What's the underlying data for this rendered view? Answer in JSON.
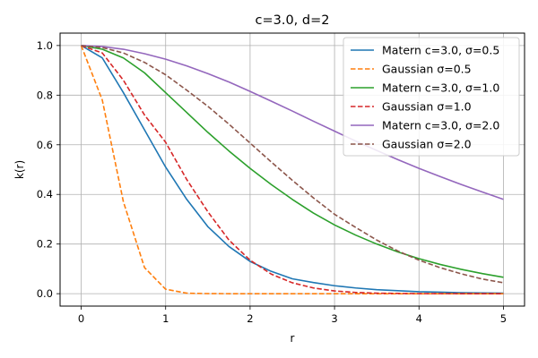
{
  "chart_data": {
    "type": "line",
    "title": "c=3.0, d=2",
    "xlabel": "r",
    "ylabel": "k(r)",
    "xlim": [
      -0.25,
      5.25
    ],
    "ylim": [
      -0.05,
      1.05
    ],
    "xticks": [
      0,
      1,
      2,
      3,
      4,
      5
    ],
    "xtick_labels": [
      "0",
      "1",
      "2",
      "3",
      "4",
      "5"
    ],
    "yticks": [
      0.0,
      0.2,
      0.4,
      0.6,
      0.8,
      1.0
    ],
    "ytick_labels": [
      "0.0",
      "0.2",
      "0.4",
      "0.6",
      "0.8",
      "1.0"
    ],
    "grid": true,
    "legend_position": "top-right",
    "x": [
      0,
      0.25,
      0.5,
      0.75,
      1,
      1.25,
      1.5,
      1.75,
      2,
      2.25,
      2.5,
      2.75,
      3,
      3.25,
      3.5,
      3.75,
      4,
      4.25,
      4.5,
      4.75,
      5
    ],
    "series": [
      {
        "name": "Matern c=3.0, σ=0.5",
        "color": "#1f77b4",
        "dash": "solid",
        "values": [
          1.0,
          0.95,
          0.81,
          0.66,
          0.51,
          0.38,
          0.27,
          0.19,
          0.13,
          0.09,
          0.06,
          0.045,
          0.032,
          0.023,
          0.016,
          0.012,
          0.008,
          0.006,
          0.004,
          0.003,
          0.002
        ]
      },
      {
        "name": "Gaussian σ=0.5",
        "color": "#ff7f0e",
        "dash": "dashed",
        "values": [
          1.0,
          0.78,
          0.37,
          0.105,
          0.018,
          0.002,
          0.0002,
          0.0,
          0.0,
          0.0,
          0.0,
          0.0,
          0.0,
          0.0,
          0.0,
          0.0,
          0.0,
          0.0,
          0.0,
          0.0,
          0.0
        ]
      },
      {
        "name": "Matern c=3.0, σ=1.0",
        "color": "#2ca02c",
        "dash": "solid",
        "values": [
          1.0,
          0.985,
          0.95,
          0.89,
          0.81,
          0.73,
          0.65,
          0.575,
          0.505,
          0.44,
          0.38,
          0.325,
          0.277,
          0.236,
          0.2,
          0.168,
          0.141,
          0.118,
          0.098,
          0.081,
          0.066
        ]
      },
      {
        "name": "Gaussian σ=1.0",
        "color": "#d62728",
        "dash": "dashed",
        "values": [
          1.0,
          0.97,
          0.86,
          0.72,
          0.61,
          0.46,
          0.33,
          0.216,
          0.135,
          0.079,
          0.044,
          0.023,
          0.011,
          0.005,
          0.002,
          0.001,
          0.0003,
          0.0001,
          0.0,
          0.0,
          0.0
        ]
      },
      {
        "name": "Matern c=3.0, σ=2.0",
        "color": "#9467bd",
        "dash": "solid",
        "values": [
          1.0,
          0.996,
          0.985,
          0.967,
          0.945,
          0.918,
          0.887,
          0.853,
          0.815,
          0.776,
          0.736,
          0.695,
          0.655,
          0.615,
          0.577,
          0.54,
          0.505,
          0.472,
          0.44,
          0.41,
          0.38
        ]
      },
      {
        "name": "Gaussian σ=2.0",
        "color": "#8c564b",
        "dash": "dashed",
        "values": [
          1.0,
          0.992,
          0.97,
          0.932,
          0.882,
          0.82,
          0.755,
          0.683,
          0.607,
          0.531,
          0.457,
          0.386,
          0.32,
          0.267,
          0.216,
          0.172,
          0.135,
          0.105,
          0.08,
          0.059,
          0.044
        ]
      }
    ]
  }
}
